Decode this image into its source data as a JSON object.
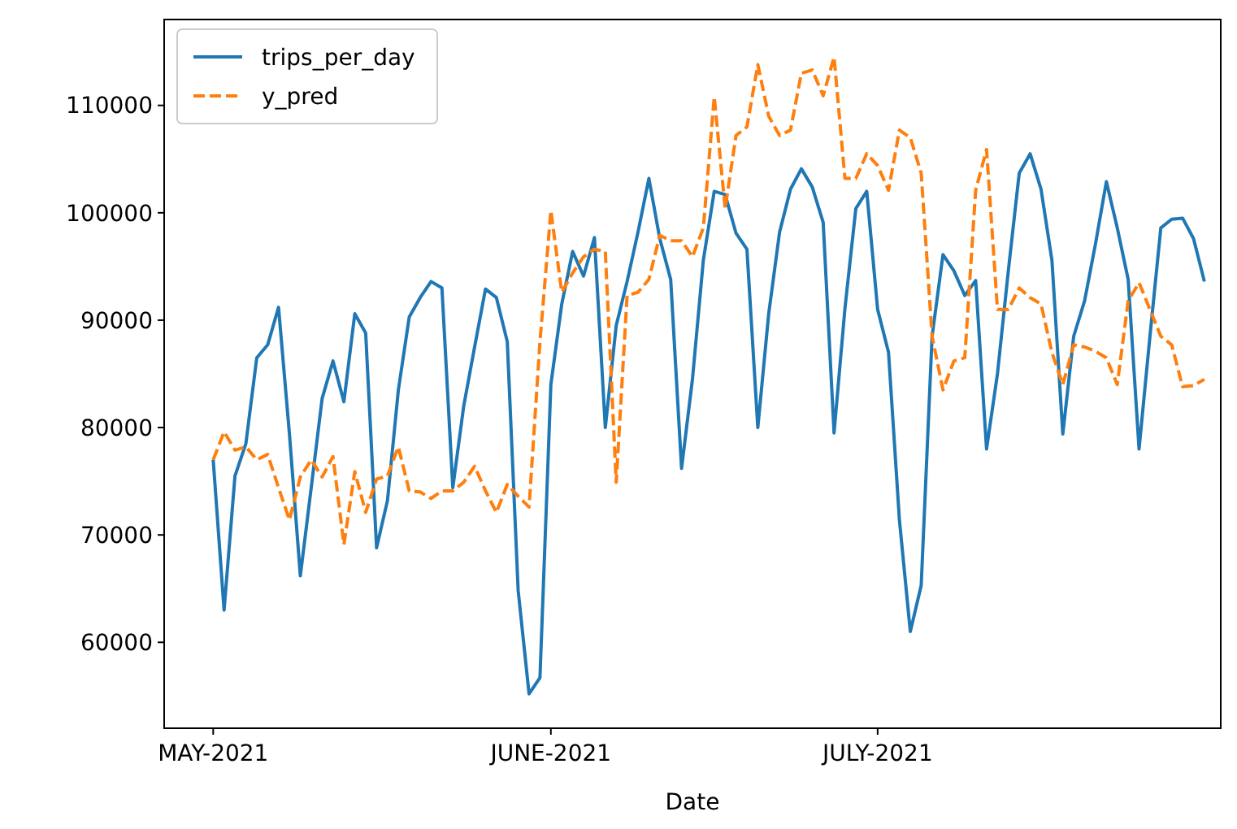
{
  "chart_data": {
    "type": "line",
    "xlabel": "Date",
    "x": [
      "2021-05-01",
      "2021-05-02",
      "2021-05-03",
      "2021-05-04",
      "2021-05-05",
      "2021-05-06",
      "2021-05-07",
      "2021-05-08",
      "2021-05-09",
      "2021-05-10",
      "2021-05-11",
      "2021-05-12",
      "2021-05-13",
      "2021-05-14",
      "2021-05-15",
      "2021-05-16",
      "2021-05-17",
      "2021-05-18",
      "2021-05-19",
      "2021-05-20",
      "2021-05-21",
      "2021-05-22",
      "2021-05-23",
      "2021-05-24",
      "2021-05-25",
      "2021-05-26",
      "2021-05-27",
      "2021-05-28",
      "2021-05-29",
      "2021-05-30",
      "2021-05-31",
      "2021-06-01",
      "2021-06-02",
      "2021-06-03",
      "2021-06-04",
      "2021-06-05",
      "2021-06-06",
      "2021-06-07",
      "2021-06-08",
      "2021-06-09",
      "2021-06-10",
      "2021-06-11",
      "2021-06-12",
      "2021-06-13",
      "2021-06-14",
      "2021-06-15",
      "2021-06-16",
      "2021-06-17",
      "2021-06-18",
      "2021-06-19",
      "2021-06-20",
      "2021-06-21",
      "2021-06-22",
      "2021-06-23",
      "2021-06-24",
      "2021-06-25",
      "2021-06-26",
      "2021-06-27",
      "2021-06-28",
      "2021-06-29",
      "2021-06-30",
      "2021-07-01",
      "2021-07-02",
      "2021-07-03",
      "2021-07-04",
      "2021-07-05",
      "2021-07-06",
      "2021-07-07",
      "2021-07-08",
      "2021-07-09",
      "2021-07-10",
      "2021-07-11",
      "2021-07-12",
      "2021-07-13",
      "2021-07-14",
      "2021-07-15",
      "2021-07-16",
      "2021-07-17",
      "2021-07-18",
      "2021-07-19",
      "2021-07-20",
      "2021-07-21",
      "2021-07-22",
      "2021-07-23",
      "2021-07-24",
      "2021-07-25",
      "2021-07-26",
      "2021-07-27",
      "2021-07-28",
      "2021-07-29",
      "2021-07-30",
      "2021-07-31"
    ],
    "series": [
      {
        "name": "trips_per_day",
        "color": "#1f77b4",
        "line_style": "solid",
        "values": [
          77000,
          63000,
          75500,
          78500,
          86500,
          87700,
          91200,
          79400,
          66200,
          74400,
          82700,
          86200,
          82400,
          90600,
          88800,
          68800,
          73200,
          83500,
          90300,
          92100,
          93600,
          93000,
          74400,
          82000,
          87500,
          92900,
          92100,
          88000,
          64800,
          55200,
          56700,
          84000,
          91500,
          96400,
          94100,
          97700,
          80000,
          89500,
          93600,
          98200,
          103200,
          97600,
          93800,
          76200,
          84500,
          95600,
          102000,
          101700,
          98100,
          96600,
          80000,
          90600,
          98200,
          102200,
          104100,
          102400,
          99100,
          79500,
          91100,
          100400,
          102000,
          91000,
          87000,
          71400,
          61000,
          65300,
          88500,
          96100,
          94600,
          92300,
          93700,
          78000,
          85000,
          94600,
          103700,
          105500,
          102200,
          95600,
          79400,
          88500,
          91800,
          97100,
          102900,
          98600,
          93800,
          78000,
          88500,
          98600,
          99400,
          99500,
          97600,
          93600
        ]
      },
      {
        "name": "y_pred",
        "color": "#ff7f0e",
        "line_style": "dashed",
        "values": [
          77000,
          79600,
          77900,
          78200,
          77000,
          77500,
          74400,
          71400,
          75400,
          77000,
          75400,
          77300,
          69100,
          75900,
          72100,
          75200,
          75500,
          78200,
          74100,
          74000,
          73400,
          74100,
          74100,
          74900,
          76400,
          74100,
          72100,
          74700,
          73600,
          72600,
          88000,
          100200,
          92600,
          94400,
          95900,
          96600,
          96400,
          74900,
          92300,
          92600,
          93800,
          97900,
          97400,
          97400,
          95900,
          98600,
          110800,
          100400,
          107200,
          108000,
          113800,
          109000,
          107200,
          107700,
          113000,
          113300,
          110900,
          114500,
          103200,
          103200,
          105500,
          104400,
          102100,
          107700,
          107000,
          103700,
          88500,
          83500,
          86200,
          86500,
          102100,
          105900,
          91000,
          91000,
          93000,
          92100,
          91500,
          87000,
          84000,
          87700,
          87500,
          87100,
          86500,
          84000,
          91800,
          93500,
          91000,
          88500,
          87700,
          83800,
          83900,
          84500
        ]
      }
    ],
    "xlim": [
      "2021-04-26T12:00",
      "2021-08-01T12:00"
    ],
    "xticks": [
      {
        "value": "2021-05-01",
        "label": "MAY-2021"
      },
      {
        "value": "2021-06-01",
        "label": "JUNE-2021"
      },
      {
        "value": "2021-07-01",
        "label": "JULY-2021"
      }
    ],
    "ylim": [
      52000,
      118000
    ],
    "yticks": [
      60000,
      70000,
      80000,
      90000,
      100000,
      110000
    ],
    "legend": "top left"
  }
}
